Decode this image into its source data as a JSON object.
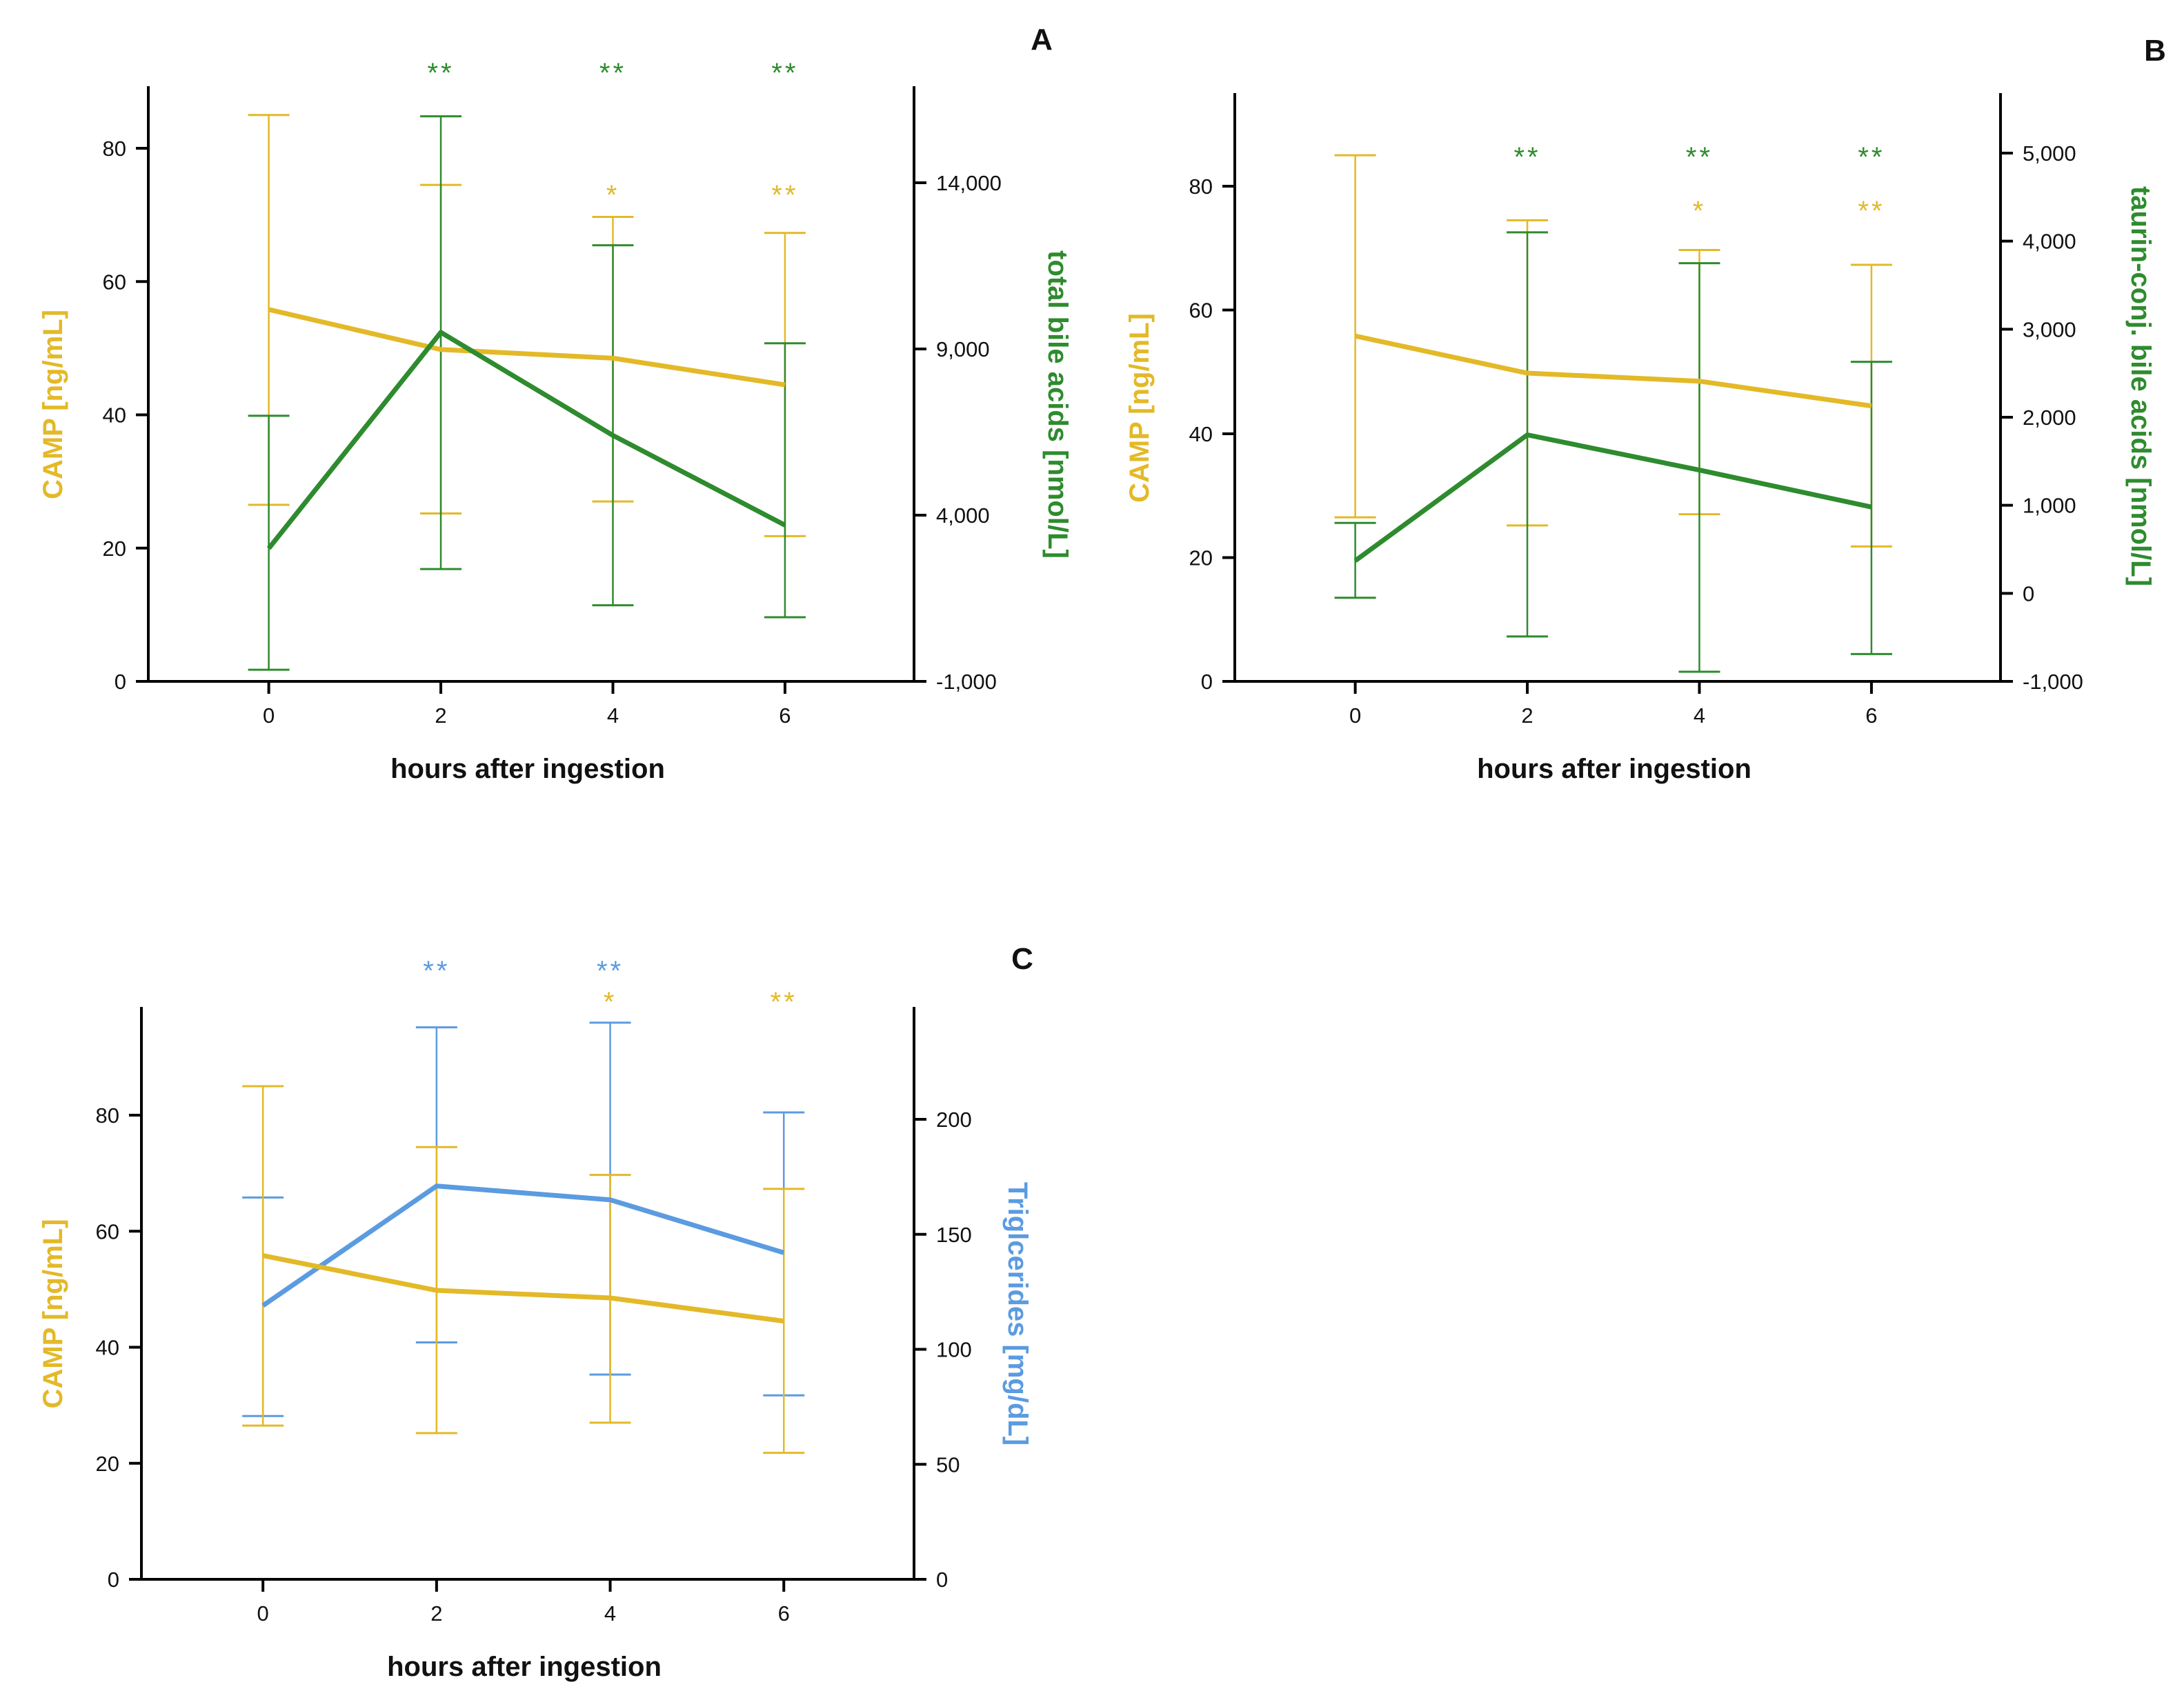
{
  "colors": {
    "camp": "#E3B928",
    "bile": "#2E8B2E",
    "trig": "#5B9BE0",
    "axis": "#000000"
  },
  "chart_data": [
    {
      "id": "A",
      "type": "line",
      "panel_label": "A",
      "xlabel": "hours after ingestion",
      "x": [
        0,
        2,
        4,
        6
      ],
      "xlim": [
        -1.4,
        7.5
      ],
      "x_ticks": [
        "0",
        "2",
        "4",
        "6"
      ],
      "left_axis": {
        "label": "CAMP [ng/mL]",
        "ylim": [
          0,
          90
        ],
        "ticks": [
          0,
          20,
          40,
          60,
          80
        ],
        "tick_labels": [
          "0",
          "20",
          "40",
          "60",
          "80"
        ]
      },
      "right_axis": {
        "label": "total bile acids [nmol/L]",
        "ylim": [
          -1000,
          17000
        ],
        "ticks": [
          -1000,
          4000,
          9000,
          14000
        ],
        "tick_labels": [
          "-1,000",
          "4,000",
          "9,000",
          "14,000"
        ]
      },
      "series": [
        {
          "name": "CAMP",
          "axis": "left",
          "color_key": "camp",
          "values": [
            55.8,
            49.8,
            48.5,
            44.5
          ],
          "err_low": [
            26.5,
            25.2,
            27.0,
            21.8
          ],
          "err_high": [
            85.0,
            74.5,
            69.7,
            67.3
          ],
          "sig": [
            "",
            "",
            "*",
            "**"
          ]
        },
        {
          "name": "total bile acids",
          "axis": "right",
          "color_key": "bile",
          "values": [
            3000,
            9500,
            6400,
            3700
          ],
          "err_low": [
            -650,
            2380,
            1290,
            930
          ],
          "err_high": [
            6990,
            16000,
            12120,
            9170
          ],
          "sig": [
            "",
            "**",
            "**",
            "**"
          ]
        }
      ]
    },
    {
      "id": "B",
      "type": "line",
      "panel_label": "B",
      "xlabel": "hours after ingestion",
      "x": [
        0,
        2,
        4,
        6
      ],
      "xlim": [
        -1.4,
        7.5
      ],
      "x_ticks": [
        "0",
        "2",
        "4",
        "6"
      ],
      "left_axis": {
        "label": "CAMP [ng/mL]",
        "ylim": [
          0,
          95
        ],
        "ticks": [
          0,
          20,
          40,
          60,
          80
        ],
        "tick_labels": [
          "0",
          "20",
          "40",
          "60",
          "80"
        ]
      },
      "right_axis": {
        "label": "taurin-conj. bile acids [nmol/L]",
        "ylim": [
          -1000,
          5650
        ],
        "ticks": [
          -1000,
          0,
          1000,
          2000,
          3000,
          4000,
          5000
        ],
        "tick_labels": [
          "-1,000",
          "0",
          "1,000",
          "2,000",
          "3,000",
          "4,000",
          "5,000"
        ]
      },
      "series": [
        {
          "name": "CAMP",
          "axis": "left",
          "color_key": "camp",
          "values": [
            55.8,
            49.8,
            48.5,
            44.5
          ],
          "err_low": [
            26.5,
            25.2,
            27.0,
            21.8
          ],
          "err_high": [
            85.0,
            74.5,
            69.7,
            67.3
          ],
          "sig": [
            "",
            "",
            "*",
            "**"
          ]
        },
        {
          "name": "taurin-conj. bile acids",
          "axis": "right",
          "color_key": "bile",
          "values": [
            370,
            1800,
            1400,
            980
          ],
          "err_low": [
            -50,
            -490,
            -890,
            -690
          ],
          "err_high": [
            800,
            4100,
            3750,
            2630
          ],
          "sig": [
            "",
            "**",
            "**",
            "**"
          ]
        }
      ]
    },
    {
      "id": "C",
      "type": "line",
      "panel_label": "C",
      "xlabel": "hours after ingestion",
      "x": [
        0,
        2,
        4,
        6
      ],
      "xlim": [
        -1.4,
        7.5
      ],
      "x_ticks": [
        "0",
        "2",
        "4",
        "6"
      ],
      "left_axis": {
        "label": "CAMP [ng/mL]",
        "ylim": [
          0,
          99
        ],
        "ticks": [
          0,
          20,
          40,
          60,
          80
        ],
        "tick_labels": [
          "0",
          "20",
          "40",
          "60",
          "80"
        ]
      },
      "right_axis": {
        "label": "Triglcerides [mg/dL]",
        "ylim": [
          0,
          247.5
        ],
        "ticks": [
          0,
          50,
          100,
          150,
          200
        ],
        "tick_labels": [
          "0",
          "50",
          "100",
          "150",
          "200"
        ]
      },
      "series": [
        {
          "name": "Triglcerides",
          "axis": "right",
          "color_key": "trig",
          "values": [
            119,
            171,
            165,
            142
          ],
          "err_low": [
            71,
            103,
            89,
            80
          ],
          "err_high": [
            166,
            240,
            242,
            203
          ],
          "sig": [
            "",
            "**",
            "**",
            ""
          ]
        },
        {
          "name": "CAMP",
          "axis": "left",
          "color_key": "camp",
          "values": [
            55.8,
            49.8,
            48.5,
            44.5
          ],
          "err_low": [
            26.5,
            25.2,
            27.0,
            21.8
          ],
          "err_high": [
            85.0,
            74.5,
            69.7,
            67.3
          ],
          "sig": [
            "",
            "",
            "*",
            "**"
          ]
        }
      ]
    }
  ]
}
